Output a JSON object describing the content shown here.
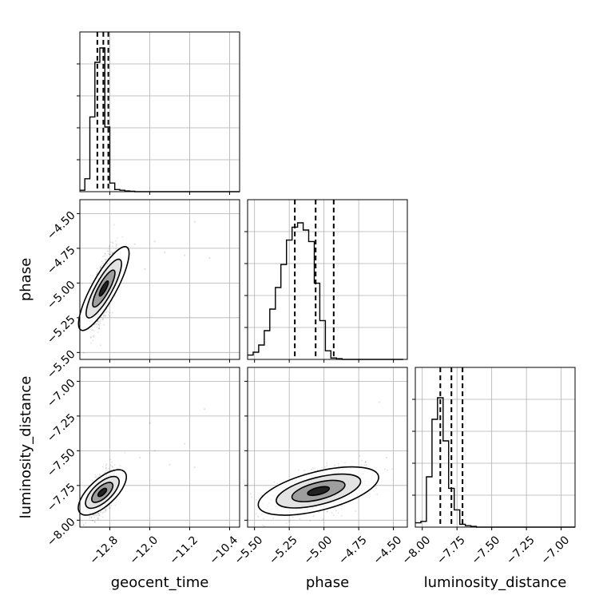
{
  "chart_data": {
    "type": "corner",
    "parameters": [
      {
        "name": "geocent_time",
        "label": "geocent_time",
        "range": [
          -13.4,
          -10.2
        ],
        "ticks": [
          -12.8,
          -12.0,
          -11.2,
          -10.4
        ],
        "tick_labels": [
          "−12.8",
          "−12.0",
          "−11.2",
          "−10.4"
        ],
        "quantiles": [
          -13.05,
          -12.93,
          -12.83
        ],
        "histogram": {
          "bin_start": -13.4,
          "bin_width": 0.1,
          "counts": [
            0.01,
            0.09,
            0.52,
            0.9,
            1.0,
            0.45,
            0.06,
            0.015,
            0.01,
            0.005,
            0.003,
            0,
            0,
            0,
            0,
            0,
            0,
            0,
            0,
            0,
            0,
            0,
            0,
            0,
            0,
            0,
            0,
            0,
            0,
            0,
            0,
            0
          ]
        }
      },
      {
        "name": "phase",
        "label": "phase",
        "range": [
          -5.55,
          -4.4
        ],
        "ticks": [
          -5.5,
          -5.25,
          -5.0,
          -4.75,
          -4.5
        ],
        "tick_labels": [
          "−5.50",
          "−5.25",
          "−5.00",
          "−4.75",
          "−4.50"
        ],
        "quantiles": [
          -5.21,
          -5.06,
          -4.93
        ],
        "histogram": {
          "bin_start": -5.55,
          "bin_width": 0.04,
          "counts": [
            0.03,
            0.05,
            0.1,
            0.2,
            0.35,
            0.5,
            0.66,
            0.83,
            0.92,
            0.95,
            0.9,
            0.82,
            0.53,
            0.27,
            0.06,
            0.01,
            0.005,
            0,
            0,
            0,
            0,
            0,
            0,
            0,
            0,
            0,
            0,
            0
          ]
        }
      },
      {
        "name": "luminosity_distance",
        "label": "luminosity_distance",
        "range": [
          -8.05,
          -6.9
        ],
        "ticks": [
          -8.0,
          -7.75,
          -7.5,
          -7.25,
          -7.0
        ],
        "tick_labels": [
          "−8.00",
          "−7.75",
          "−7.50",
          "−7.25",
          "−7.00"
        ],
        "quantiles": [
          -7.87,
          -7.79,
          -7.71
        ],
        "histogram": {
          "bin_start": -8.05,
          "bin_width": 0.04,
          "counts": [
            0.03,
            0.04,
            0.35,
            0.75,
            0.9,
            0.6,
            0.27,
            0.12,
            0.02,
            0.01,
            0.005,
            0,
            0,
            0,
            0,
            0,
            0,
            0,
            0,
            0,
            0,
            0,
            0,
            0,
            0,
            0,
            0,
            0,
            0
          ]
        }
      }
    ],
    "pairs": [
      {
        "x": "geocent_time",
        "y": "phase",
        "mean": [
          -12.92,
          -5.04
        ],
        "sd": [
          0.1,
          0.1
        ],
        "rho": 0.65,
        "n_points": 1400,
        "outliers": [
          [
            -12.3,
            -4.72
          ],
          [
            -11.7,
            -4.78
          ],
          [
            -11.3,
            -4.8
          ],
          [
            -11.1,
            -4.56
          ],
          [
            -10.8,
            -4.82
          ],
          [
            -12.1,
            -4.9
          ],
          [
            -11.9,
            -4.7
          ]
        ]
      },
      {
        "x": "geocent_time",
        "y": "luminosity_distance",
        "mean": [
          -12.95,
          -7.8
        ],
        "sd": [
          0.1,
          0.06
        ],
        "rho": 0.55,
        "n_points": 1200,
        "outliers": [
          [
            -12.2,
            -7.55
          ],
          [
            -11.9,
            -7.5
          ],
          [
            -11.6,
            -7.6
          ],
          [
            -11.3,
            -7.45
          ],
          [
            -10.9,
            -7.2
          ],
          [
            -11.1,
            -7.62
          ],
          [
            -12.0,
            -7.3
          ]
        ]
      },
      {
        "x": "phase",
        "y": "luminosity_distance",
        "mean": [
          -5.04,
          -7.79
        ],
        "sd": [
          0.13,
          0.06
        ],
        "rho": 0.55,
        "n_points": 1400,
        "outliers": [
          [
            -4.55,
            -7.55
          ],
          [
            -4.6,
            -7.15
          ],
          [
            -4.7,
            -7.58
          ]
        ]
      }
    ]
  }
}
